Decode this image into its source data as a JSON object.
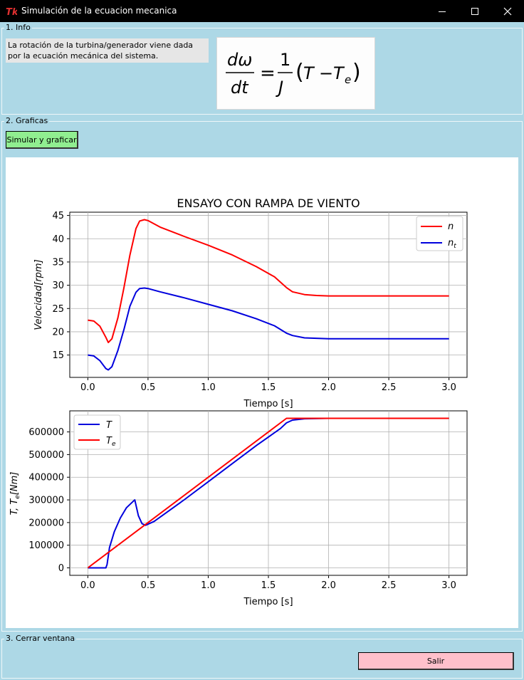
{
  "window": {
    "title": "Simulación de la ecuacion mecanica",
    "app_icon": "tk-feather-icon",
    "controls": [
      "minimize-icon",
      "maximize-icon",
      "close-icon"
    ]
  },
  "sections": {
    "info": {
      "label": "1. Info",
      "text": "La rotación de la turbina/generador viene dada por la ecuación mecánica del sistema.",
      "equation": {
        "lhs_num": "dω",
        "lhs_den": "dt",
        "rhs_num": "1",
        "rhs_den": "J",
        "paren_open": "(",
        "term1": "T",
        "minus": "−",
        "term2": "T",
        "term2_sub": "e",
        "paren_close": ")",
        "equals": "="
      }
    },
    "graphs": {
      "label": "2. Graficas",
      "simulate_button": "Simular y graficar"
    },
    "close": {
      "label": "3. Cerrar ventana",
      "exit_button": "Salir"
    }
  },
  "colors": {
    "background": "#add8e6",
    "simulate_button": "#90ee90",
    "exit_button": "#ffc0cb",
    "series_red": "#ff0000",
    "series_blue": "#0000dd"
  },
  "chart_data": [
    {
      "type": "line",
      "title": "ENSAYO CON RAMPA DE VIENTO",
      "xlabel": "Tiempo [s]",
      "ylabel": "Velocidad[rpm]",
      "xlim": [
        -0.15,
        3.15
      ],
      "ylim": [
        10.2,
        45.7
      ],
      "xticks": [
        "0.0",
        "0.5",
        "1.0",
        "1.5",
        "2.0",
        "2.5",
        "3.0"
      ],
      "yticks": [
        "15",
        "20",
        "25",
        "30",
        "35",
        "40",
        "45"
      ],
      "xtick_values": [
        0,
        0.5,
        1,
        1.5,
        2,
        2.5,
        3
      ],
      "ytick_values": [
        15,
        20,
        25,
        30,
        35,
        40,
        45
      ],
      "grid": true,
      "legend": "top-right",
      "series": [
        {
          "name": "n",
          "subscript": "",
          "color": "#ff0000",
          "x": [
            0,
            0.05,
            0.1,
            0.15,
            0.17,
            0.2,
            0.25,
            0.3,
            0.35,
            0.4,
            0.43,
            0.47,
            0.5,
            0.6,
            0.8,
            1.0,
            1.2,
            1.4,
            1.55,
            1.65,
            1.7,
            1.8,
            1.9,
            2.0,
            2.2,
            2.5,
            3.0
          ],
          "y": [
            22.5,
            22.3,
            21.2,
            18.8,
            17.7,
            18.5,
            23,
            29.5,
            36.5,
            42.2,
            43.8,
            44.1,
            43.9,
            42.5,
            40.5,
            38.6,
            36.5,
            34,
            31.8,
            29.5,
            28.6,
            28,
            27.8,
            27.7,
            27.7,
            27.7,
            27.7
          ]
        },
        {
          "name": "n",
          "subscript": "t",
          "color": "#0000dd",
          "x": [
            0,
            0.05,
            0.1,
            0.15,
            0.17,
            0.2,
            0.25,
            0.3,
            0.35,
            0.4,
            0.43,
            0.47,
            0.5,
            0.6,
            0.8,
            1.0,
            1.2,
            1.4,
            1.55,
            1.65,
            1.7,
            1.8,
            1.9,
            2.0,
            2.2,
            2.5,
            3.0
          ],
          "y": [
            15,
            14.8,
            13.8,
            12.1,
            11.8,
            12.5,
            16,
            20.5,
            25.5,
            28.5,
            29.3,
            29.4,
            29.3,
            28.6,
            27.3,
            25.9,
            24.5,
            22.8,
            21.3,
            19.7,
            19.2,
            18.7,
            18.6,
            18.5,
            18.5,
            18.5,
            18.5
          ]
        }
      ]
    },
    {
      "type": "line",
      "title": "",
      "xlabel": "Tiempo [s]",
      "ylabel": "T, T_e[Nm]",
      "ylabel_parts": {
        "a": "T, T",
        "sub": "e",
        "b": "[Nm]"
      },
      "xlim": [
        -0.15,
        3.15
      ],
      "ylim": [
        -33000,
        693000
      ],
      "xticks": [
        "0.0",
        "0.5",
        "1.0",
        "1.5",
        "2.0",
        "2.5",
        "3.0"
      ],
      "yticks": [
        "0",
        "100000",
        "200000",
        "300000",
        "400000",
        "500000",
        "600000"
      ],
      "xtick_values": [
        0,
        0.5,
        1,
        1.5,
        2,
        2.5,
        3
      ],
      "ytick_values": [
        0,
        100000,
        200000,
        300000,
        400000,
        500000,
        600000
      ],
      "grid": true,
      "legend": "top-left",
      "series": [
        {
          "name": "T",
          "subscript": "",
          "color": "#0000dd",
          "x": [
            0,
            0.15,
            0.16,
            0.18,
            0.22,
            0.27,
            0.32,
            0.37,
            0.39,
            0.42,
            0.45,
            0.48,
            0.55,
            0.8,
            1.0,
            1.2,
            1.4,
            1.6,
            1.65,
            1.7,
            1.8,
            2.0,
            3.0
          ],
          "y": [
            0,
            0,
            15000,
            90000,
            160000,
            220000,
            265000,
            290000,
            300000,
            230000,
            195000,
            188000,
            205000,
            300000,
            380000,
            460000,
            540000,
            615000,
            640000,
            652000,
            658000,
            660000,
            660000
          ]
        },
        {
          "name": "T",
          "subscript": "e",
          "color": "#ff0000",
          "x": [
            0,
            1.65,
            3.0
          ],
          "y": [
            0,
            660000,
            660000
          ]
        }
      ]
    }
  ]
}
